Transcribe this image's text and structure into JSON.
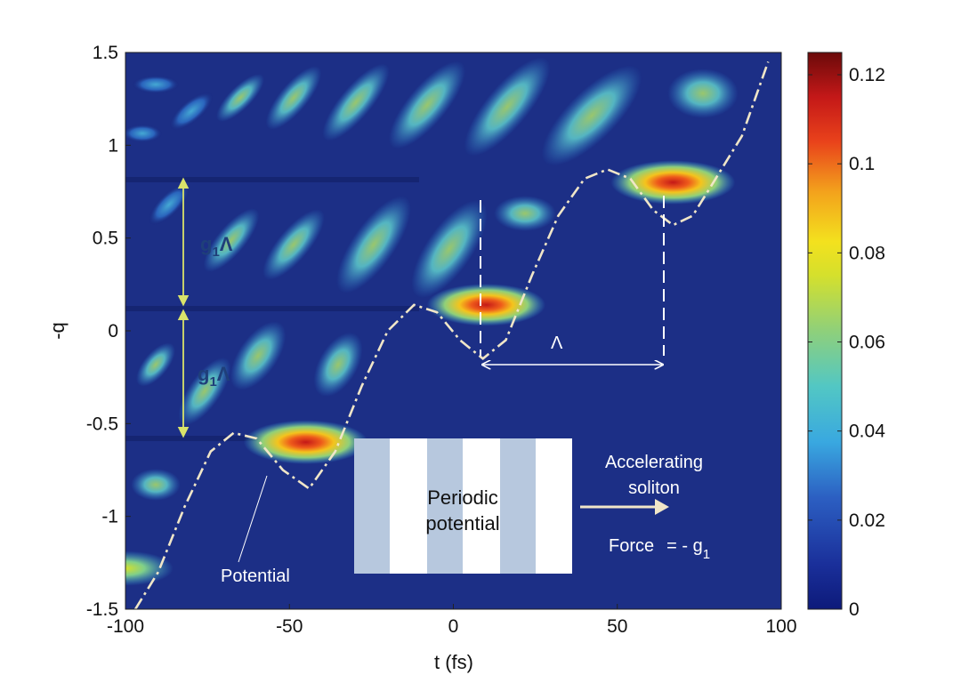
{
  "chart_data": {
    "type": "heatmap",
    "xlabel": "t (fs)",
    "ylabel": "-q",
    "xlim": [
      -100,
      100
    ],
    "ylim": [
      -1.5,
      1.5
    ],
    "x_ticks": [
      -100,
      -50,
      0,
      50,
      100
    ],
    "x_tick_labels": [
      "-100",
      "-50",
      "0",
      "50",
      "100"
    ],
    "y_ticks": [
      -1.5,
      -1,
      -0.5,
      0,
      0.5,
      1,
      1.5
    ],
    "y_tick_labels": [
      "-1.5",
      "-1",
      "-0.5",
      "0",
      "0.5",
      "1",
      "1.5"
    ],
    "colorbar": {
      "range": [
        0,
        0.125
      ],
      "ticks": [
        0,
        0.02,
        0.04,
        0.06,
        0.08,
        0.1,
        0.12
      ],
      "tick_labels": [
        "0",
        "0.02",
        "0.04",
        "0.06",
        "0.08",
        "0.1",
        "0.12"
      ],
      "colormap": "jet"
    },
    "colormap_colors": [
      "#00008f",
      "#0000ff",
      "#00ffff",
      "#ffff00",
      "#ff0000",
      "#800000"
    ],
    "background_color": "#1c2f86",
    "soliton_peaks": [
      {
        "t": -100,
        "q": -1.28,
        "value": 0.06
      },
      {
        "t": -45,
        "q": -0.6,
        "value": 0.1
      },
      {
        "t": 10,
        "q": 0.14,
        "value": 0.092
      },
      {
        "t": 67,
        "q": 0.8,
        "value": 0.1
      }
    ],
    "potential_curve": {
      "style": "dash-dot",
      "color": "#f0e6c8",
      "points": [
        [
          -97,
          -1.5
        ],
        [
          -90,
          -1.3
        ],
        [
          -82,
          -0.95
        ],
        [
          -74,
          -0.65
        ],
        [
          -67,
          -0.55
        ],
        [
          -60,
          -0.58
        ],
        [
          -52,
          -0.75
        ],
        [
          -44,
          -0.85
        ],
        [
          -36,
          -0.65
        ],
        [
          -28,
          -0.3
        ],
        [
          -20,
          0.0
        ],
        [
          -12,
          0.14
        ],
        [
          -5,
          0.1
        ],
        [
          2,
          -0.05
        ],
        [
          9,
          -0.15
        ],
        [
          16,
          -0.05
        ],
        [
          24,
          0.3
        ],
        [
          32,
          0.62
        ],
        [
          40,
          0.82
        ],
        [
          47,
          0.87
        ],
        [
          54,
          0.82
        ],
        [
          61,
          0.65
        ],
        [
          67,
          0.57
        ],
        [
          73,
          0.62
        ],
        [
          80,
          0.82
        ],
        [
          88,
          1.05
        ],
        [
          96,
          1.45
        ]
      ]
    },
    "annotations": {
      "g1_label": "g",
      "g1_subscript": "1",
      "lambda_symbol": "Λ",
      "period_label": "Λ",
      "potential_label": "Potential",
      "periodic_potential_line1": "Periodic",
      "periodic_potential_line2": "potential",
      "accelerating_soliton_line1": "Accelerating",
      "accelerating_soliton_line2": "soliton",
      "force_label": "Force",
      "force_value": "= - g",
      "force_subscript": "1"
    }
  }
}
